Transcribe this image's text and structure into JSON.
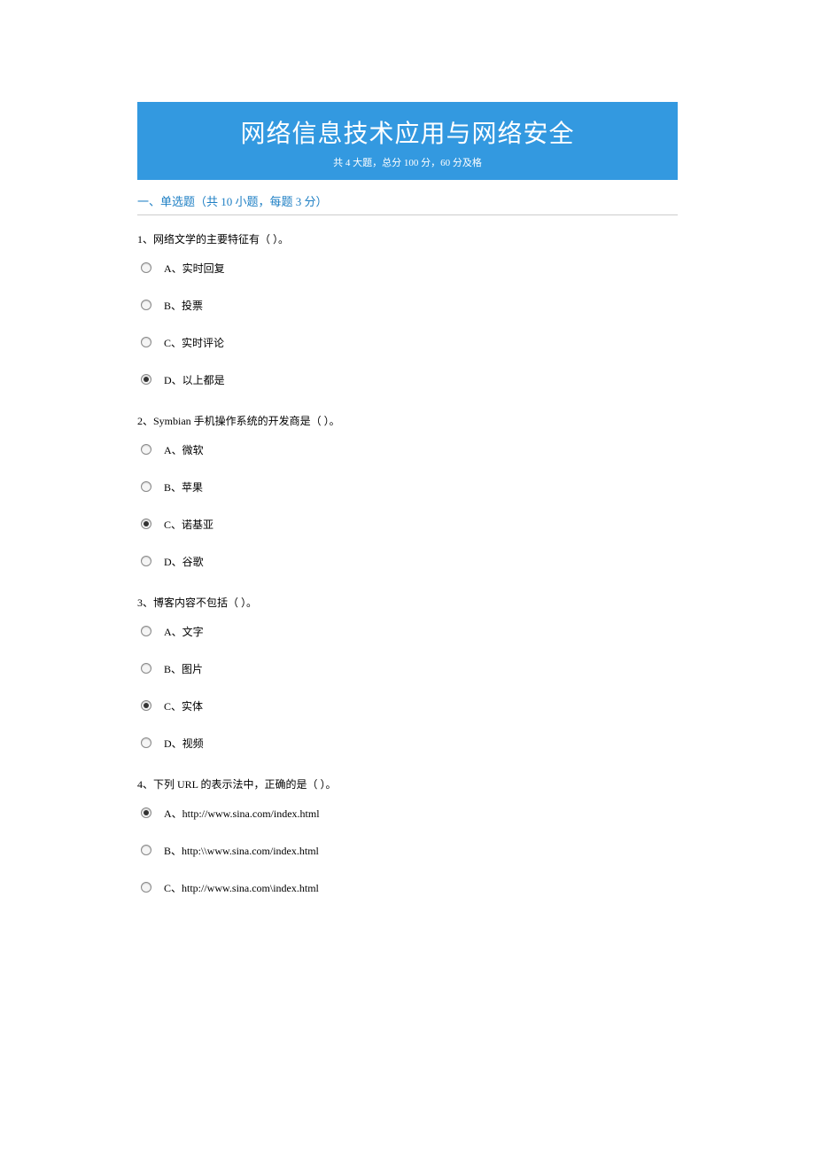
{
  "header": {
    "title": "网络信息技术应用与网络安全",
    "subtitle": "共 4 大题，总分 100 分，60 分及格",
    "bg_color": "#3399e0",
    "title_color": "#ffffff"
  },
  "section": {
    "title": "一、单选题（共 10 小题，每题 3 分）",
    "color": "#1e7fc4"
  },
  "questions": [
    {
      "number": "1",
      "text": "1、网络文学的主要特征有（ ）。",
      "options": [
        {
          "label": "A、实时回复",
          "selected": false
        },
        {
          "label": "B、投票",
          "selected": false
        },
        {
          "label": "C、实时评论",
          "selected": false
        },
        {
          "label": "D、以上都是",
          "selected": true
        }
      ]
    },
    {
      "number": "2",
      "text": "2、Symbian 手机操作系统的开发商是（ ）。",
      "options": [
        {
          "label": "A、微软",
          "selected": false
        },
        {
          "label": "B、苹果",
          "selected": false
        },
        {
          "label": "C、诺基亚",
          "selected": true
        },
        {
          "label": "D、谷歌",
          "selected": false
        }
      ]
    },
    {
      "number": "3",
      "text": "3、博客内容不包括（ ）。",
      "options": [
        {
          "label": "A、文字",
          "selected": false
        },
        {
          "label": "B、图片",
          "selected": false
        },
        {
          "label": "C、实体",
          "selected": true
        },
        {
          "label": "D、视频",
          "selected": false
        }
      ]
    },
    {
      "number": "4",
      "text": "4、下列 URL 的表示法中，正确的是（ ）。",
      "options": [
        {
          "label": "A、http://www.sina.com/index.html",
          "selected": true
        },
        {
          "label": "B、http:\\\\www.sina.com/index.html",
          "selected": false
        },
        {
          "label": "C、http://www.sina.com\\index.html",
          "selected": false
        }
      ]
    }
  ]
}
